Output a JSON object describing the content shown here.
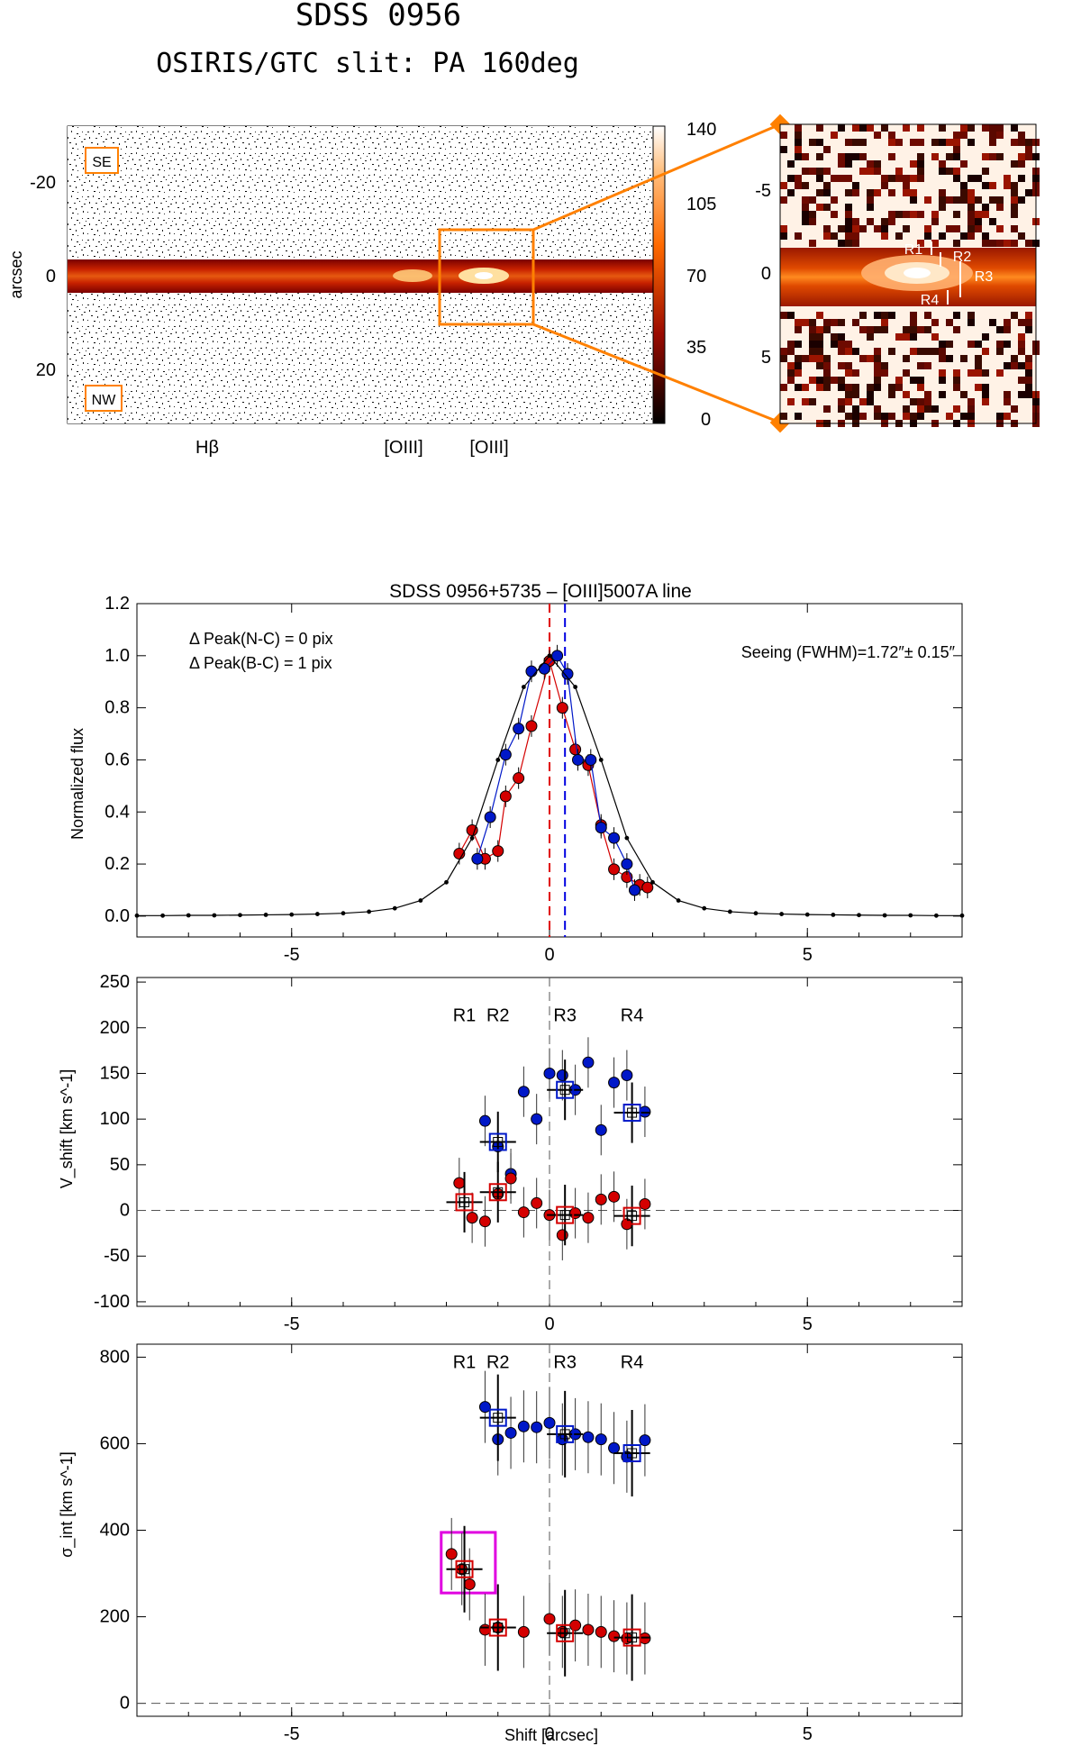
{
  "header": {
    "title": "SDSS 0956",
    "subtitle": "OSIRIS/GTC slit: PA 160deg"
  },
  "spectrum_image": {
    "ylabel": "arcsec",
    "yticks": [
      "-20",
      "0",
      "20"
    ],
    "corner_labels": [
      "SE",
      "NW"
    ],
    "line_labels": [
      "Hβ",
      "[OIII]",
      "[OIII]"
    ],
    "colorbar_ticks": [
      "140",
      "105",
      "70",
      "35",
      "0"
    ],
    "zoom_yticks": [
      "-5",
      "0",
      "5"
    ],
    "zoom_region_labels": [
      "R1",
      "R2",
      "R3",
      "R4"
    ],
    "colors": {
      "highlight": "#ff8000",
      "core": "#ffffff",
      "bar": "#c81e00"
    }
  },
  "chart_data": [
    {
      "type": "line",
      "title": "SDSS 0956+5735 – [OIII]5007A line",
      "xlabel": "",
      "ylabel": "Normalized flux",
      "xlim": [
        -8,
        8
      ],
      "ylim": [
        -0.08,
        1.2
      ],
      "xticks": [
        "-5",
        "0",
        "5"
      ],
      "yticks": [
        "0.0",
        "0.2",
        "0.4",
        "0.6",
        "0.8",
        "1.0",
        "1.2"
      ],
      "annotations": [
        "Δ Peak(N-C) = 0 pix",
        "Δ Peak(B-C) = 1 pix",
        "Seeing (FWHM)=1.72″± 0.15″"
      ],
      "vlines": [
        {
          "x": 0.0,
          "color": "#e00000"
        },
        {
          "x": 0.3,
          "color": "#0000e0"
        }
      ],
      "series": [
        {
          "color": "#d40000",
          "x": [
            -1.75,
            -1.5,
            -1.25,
            -1.0,
            -0.85,
            -0.6,
            -0.35,
            0.0,
            0.25,
            0.5,
            0.75,
            1.0,
            1.25,
            1.5,
            1.75,
            1.9
          ],
          "y": [
            0.24,
            0.33,
            0.22,
            0.25,
            0.46,
            0.53,
            0.73,
            0.98,
            0.8,
            0.64,
            0.58,
            0.35,
            0.18,
            0.15,
            0.12,
            0.11
          ]
        },
        {
          "color": "#0018c8",
          "x": [
            -1.4,
            -1.15,
            -0.85,
            -0.6,
            -0.35,
            -0.1,
            0.15,
            0.35,
            0.55,
            0.8,
            1.0,
            1.25,
            1.5,
            1.65
          ],
          "y": [
            0.22,
            0.38,
            0.62,
            0.72,
            0.94,
            0.95,
            1.0,
            0.93,
            0.6,
            0.6,
            0.34,
            0.3,
            0.2,
            0.1
          ]
        },
        {
          "color": "#000000",
          "x": [
            -8.0,
            -7.5,
            -7.0,
            -6.5,
            -6.0,
            -5.5,
            -5.0,
            -4.5,
            -4.0,
            -3.5,
            -3.0,
            -2.5,
            -2.0,
            -1.5,
            -1.0,
            -0.5,
            0.0,
            0.5,
            1.0,
            1.5,
            2.0,
            2.5,
            3.0,
            3.5,
            4.0,
            4.5,
            5.0,
            5.5,
            6.0,
            6.5,
            7.0,
            7.5,
            8.0
          ],
          "y": [
            0.002,
            0.002,
            0.003,
            0.003,
            0.004,
            0.005,
            0.006,
            0.008,
            0.011,
            0.017,
            0.03,
            0.06,
            0.13,
            0.3,
            0.6,
            0.88,
            1.0,
            0.88,
            0.6,
            0.3,
            0.13,
            0.06,
            0.03,
            0.017,
            0.011,
            0.008,
            0.006,
            0.005,
            0.004,
            0.003,
            0.003,
            0.002,
            0.002
          ]
        }
      ]
    },
    {
      "type": "scatter",
      "xlabel": "",
      "ylabel": "V_shift [km s^-1]",
      "xlim": [
        -8,
        8
      ],
      "ylim": [
        -105,
        255
      ],
      "xticks": [
        "-5",
        "0",
        "5"
      ],
      "yticks": [
        "-100",
        "-50",
        "0",
        "50",
        "100",
        "150",
        "200",
        "250"
      ],
      "region_labels": [
        {
          "text": "R1",
          "x": -1.65
        },
        {
          "text": "R2",
          "x": -1.0
        },
        {
          "text": "R3",
          "x": 0.3
        },
        {
          "text": "R4",
          "x": 1.6
        }
      ],
      "region_label_y": 207,
      "series": [
        {
          "color": "#0018c8",
          "x": [
            -1.25,
            -1.0,
            -0.75,
            -0.5,
            -0.25,
            0.0,
            0.25,
            0.5,
            0.75,
            1.0,
            1.25,
            1.5,
            1.85
          ],
          "y": [
            98,
            70,
            40,
            130,
            100,
            150,
            148,
            132,
            162,
            88,
            140,
            148,
            108
          ]
        },
        {
          "color": "#d40000",
          "x": [
            -1.75,
            -1.5,
            -1.25,
            -1.0,
            -0.75,
            -0.5,
            -0.25,
            0.0,
            0.25,
            0.5,
            0.75,
            1.0,
            1.25,
            1.5,
            1.85
          ],
          "y": [
            30,
            -8,
            -12,
            18,
            35,
            -2,
            8,
            -5,
            -27,
            -3,
            -8,
            12,
            15,
            -15,
            7
          ]
        }
      ],
      "averages": [
        {
          "color": "#0018c8",
          "x": [
            -1.0,
            0.3,
            1.6
          ],
          "y": [
            75,
            132,
            107
          ]
        },
        {
          "color": "#d40000",
          "x": [
            -1.65,
            -1.0,
            0.3,
            1.6
          ],
          "y": [
            9,
            20,
            -5,
            -6
          ]
        }
      ]
    },
    {
      "type": "scatter",
      "xlabel": "Shift [arcsec]",
      "ylabel": "σ_int [km s^-1]",
      "xlim": [
        -8,
        8
      ],
      "ylim": [
        -30,
        830
      ],
      "xticks": [
        "-5",
        "0",
        "5"
      ],
      "yticks": [
        "0",
        "200",
        "400",
        "600",
        "800"
      ],
      "region_labels": [
        {
          "text": "R1",
          "x": -1.65
        },
        {
          "text": "R2",
          "x": -1.0
        },
        {
          "text": "R3",
          "x": 0.3
        },
        {
          "text": "R4",
          "x": 1.6
        }
      ],
      "region_label_y": 775,
      "highlight_box": {
        "x": [
          -2.1,
          -1.05
        ],
        "y": [
          255,
          395
        ],
        "color": "#e000e0"
      },
      "series": [
        {
          "color": "#0018c8",
          "x": [
            -1.25,
            -1.0,
            -0.75,
            -0.5,
            -0.25,
            0.0,
            0.25,
            0.5,
            0.75,
            1.0,
            1.25,
            1.5,
            1.85
          ],
          "y": [
            685,
            610,
            625,
            640,
            638,
            648,
            610,
            622,
            615,
            610,
            590,
            570,
            608
          ]
        },
        {
          "color": "#d40000",
          "x": [
            -1.9,
            -1.7,
            -1.55,
            -1.25,
            -1.0,
            -0.5,
            0.0,
            0.25,
            0.5,
            0.75,
            1.0,
            1.25,
            1.5,
            1.85
          ],
          "y": [
            345,
            310,
            275,
            170,
            175,
            165,
            195,
            165,
            180,
            170,
            165,
            155,
            150,
            150
          ]
        }
      ],
      "averages": [
        {
          "color": "#0018c8",
          "x": [
            -1.0,
            0.3,
            1.6
          ],
          "y": [
            660,
            622,
            578
          ]
        },
        {
          "color": "#d40000",
          "x": [
            -1.65,
            -1.0,
            0.3,
            1.6
          ],
          "y": [
            310,
            175,
            162,
            152
          ]
        }
      ]
    }
  ]
}
